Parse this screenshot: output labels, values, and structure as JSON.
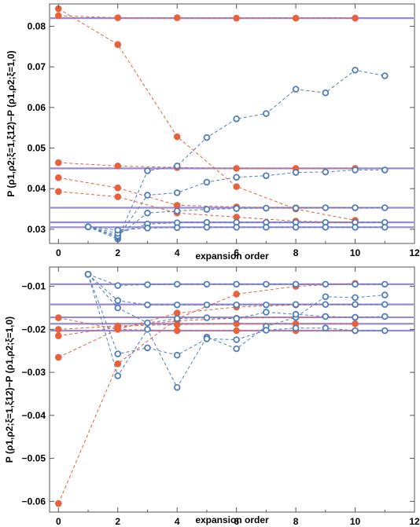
{
  "chart_data": [
    {
      "type": "line",
      "xlabel": "expansion order",
      "ylabel": "P (ρ1,ρ2;ξ=1,ξ12)−P (ρ1,ρ2;ξ=1,0)",
      "xlim": [
        -0.3,
        12
      ],
      "ylim": [
        0.0265,
        0.0855
      ],
      "xticks": [
        "0",
        "2",
        "4",
        "6",
        "8",
        "10",
        "12"
      ],
      "yticks": [
        "0.03",
        "0.04",
        "0.05",
        "0.06",
        "0.07",
        "0.08"
      ],
      "grid": false,
      "legend": "none",
      "reference_lines": [
        0.082,
        0.045,
        0.0353,
        0.0317,
        0.0305
      ],
      "series": [
        {
          "marker": "filled",
          "color": "#E8603C",
          "x": [
            0,
            2,
            4,
            6,
            8,
            10
          ],
          "y": [
            0.0843,
            0.0755,
            0.0528,
            0.0405,
            0.035,
            0.0322
          ]
        },
        {
          "marker": "filled",
          "color": "#E8603C",
          "x": [
            0,
            2,
            4,
            6,
            8,
            10
          ],
          "y": [
            0.0826,
            0.0821,
            0.0821,
            0.082,
            0.082,
            0.082
          ]
        },
        {
          "marker": "filled",
          "color": "#E8603C",
          "x": [
            0,
            2,
            4,
            6,
            8,
            10
          ],
          "y": [
            0.0464,
            0.0456,
            0.0452,
            0.045,
            0.045,
            0.045
          ]
        },
        {
          "marker": "filled",
          "color": "#E8603C",
          "x": [
            0,
            2,
            4,
            6,
            8,
            10
          ],
          "y": [
            0.0427,
            0.0402,
            0.0359,
            0.0355,
            0.0353,
            0.0353
          ]
        },
        {
          "marker": "filled",
          "color": "#E8603C",
          "x": [
            0,
            2,
            4,
            6,
            8,
            10
          ],
          "y": [
            0.0393,
            0.038,
            0.034,
            0.033,
            0.032,
            0.0317
          ]
        },
        {
          "marker": "open",
          "color": "#4F7DBC",
          "x": [
            1,
            2,
            3,
            4,
            5,
            6,
            7,
            8,
            9,
            10,
            11
          ],
          "y": [
            0.0306,
            0.0276,
            0.0444,
            0.0456,
            0.0526,
            0.0572,
            0.0585,
            0.0645,
            0.0636,
            0.0692,
            0.0678
          ]
        },
        {
          "marker": "open",
          "color": "#4F7DBC",
          "x": [
            1,
            2,
            3,
            4,
            5,
            6,
            7,
            8,
            9,
            10,
            11
          ],
          "y": [
            0.0306,
            0.028,
            0.0384,
            0.039,
            0.0416,
            0.0428,
            0.0432,
            0.044,
            0.0441,
            0.0446,
            0.0446
          ]
        },
        {
          "marker": "open",
          "color": "#4F7DBC",
          "x": [
            1,
            2,
            3,
            4,
            5,
            6,
            7,
            8,
            9,
            10,
            11
          ],
          "y": [
            0.0306,
            0.0284,
            0.034,
            0.0345,
            0.0349,
            0.0351,
            0.0352,
            0.0352,
            0.0353,
            0.0353,
            0.0353
          ]
        },
        {
          "marker": "open",
          "color": "#4F7DBC",
          "x": [
            1,
            2,
            3,
            4,
            5,
            6,
            7,
            8,
            9,
            10,
            11
          ],
          "y": [
            0.0306,
            0.029,
            0.0313,
            0.0316,
            0.0317,
            0.0317,
            0.0317,
            0.0317,
            0.0317,
            0.0317,
            0.0317
          ]
        },
        {
          "marker": "open",
          "color": "#4F7DBC",
          "x": [
            1,
            2,
            3,
            4,
            5,
            6,
            7,
            8,
            9,
            10,
            11
          ],
          "y": [
            0.0306,
            0.0298,
            0.0303,
            0.0304,
            0.0305,
            0.0305,
            0.0305,
            0.0305,
            0.0305,
            0.0305,
            0.0305
          ]
        }
      ]
    },
    {
      "type": "line",
      "xlabel": "expansion order",
      "ylabel": "P (ρ1,ρ2;ξ=1,ξ12)−P (ρ1,ρ2;ξ=1,0)",
      "xlim": [
        -0.3,
        12
      ],
      "ylim": [
        -0.0625,
        -0.0055
      ],
      "xticks": [
        "0",
        "2",
        "4",
        "6",
        "8",
        "10",
        "12"
      ],
      "yticks": [
        "-0.01",
        "-0.02",
        "-0.03",
        "-0.04",
        "-0.05",
        "-0.06"
      ],
      "grid": false,
      "legend": "none",
      "reference_lines": [
        -0.0095,
        -0.0142,
        -0.0172,
        -0.0187,
        -0.0203
      ],
      "series": [
        {
          "marker": "filled",
          "color": "#E8603C",
          "x": [
            0,
            2,
            4,
            6,
            8,
            10
          ],
          "y": [
            -0.0605,
            -0.028,
            -0.0175,
            -0.0118,
            -0.01,
            -0.0093
          ]
        },
        {
          "marker": "filled",
          "color": "#E8603C",
          "x": [
            0,
            2,
            4,
            6,
            8,
            10
          ],
          "y": [
            -0.0265,
            -0.02,
            -0.0162,
            -0.0148,
            -0.0143,
            -0.0142
          ]
        },
        {
          "marker": "filled",
          "color": "#E8603C",
          "x": [
            0,
            2,
            4,
            6,
            8,
            10
          ],
          "y": [
            -0.0215,
            -0.0195,
            -0.018,
            -0.0174,
            -0.0172,
            -0.0172
          ]
        },
        {
          "marker": "filled",
          "color": "#E8603C",
          "x": [
            0,
            2,
            4,
            6,
            8,
            10
          ],
          "y": [
            -0.02,
            -0.0192,
            -0.0189,
            -0.0187,
            -0.0187,
            -0.0187
          ]
        },
        {
          "marker": "filled",
          "color": "#E8603C",
          "x": [
            0,
            2,
            4,
            6,
            8,
            10
          ],
          "y": [
            -0.0173,
            -0.02,
            -0.0203,
            -0.0203,
            -0.0203,
            -0.0203
          ]
        },
        {
          "marker": "open",
          "color": "#4F7DBC",
          "x": [
            1,
            2,
            3,
            4,
            5,
            6,
            7,
            8,
            9,
            10,
            11
          ],
          "y": [
            -0.0072,
            -0.0308,
            -0.02,
            -0.0335,
            -0.0218,
            -0.0245,
            -0.0193,
            -0.0172,
            -0.0124,
            -0.0126,
            -0.012
          ]
        },
        {
          "marker": "open",
          "color": "#4F7DBC",
          "x": [
            1,
            2,
            3,
            4,
            5,
            6,
            7,
            8,
            9,
            10,
            11
          ],
          "y": [
            -0.0072,
            -0.0257,
            -0.0243,
            -0.026,
            -0.0222,
            -0.0224,
            -0.0202,
            -0.0197,
            -0.0197,
            -0.0203,
            -0.0203
          ]
        },
        {
          "marker": "open",
          "color": "#4F7DBC",
          "x": [
            1,
            2,
            3,
            4,
            5,
            6,
            7,
            8,
            9,
            10,
            11
          ],
          "y": [
            -0.0072,
            -0.015,
            -0.0185,
            -0.0175,
            -0.0173,
            -0.0175,
            -0.016,
            -0.0165,
            -0.017,
            -0.0172,
            -0.017
          ]
        },
        {
          "marker": "open",
          "color": "#4F7DBC",
          "x": [
            1,
            2,
            3,
            4,
            5,
            6,
            7,
            8,
            9,
            10,
            11
          ],
          "y": [
            -0.0072,
            -0.0133,
            -0.0143,
            -0.0143,
            -0.0143,
            -0.0143,
            -0.0143,
            -0.0142,
            -0.0142,
            -0.0142,
            -0.0142
          ]
        },
        {
          "marker": "open",
          "color": "#4F7DBC",
          "x": [
            1,
            2,
            3,
            4,
            5,
            6,
            7,
            8,
            9,
            10,
            11
          ],
          "y": [
            -0.0072,
            -0.0098,
            -0.0096,
            -0.0095,
            -0.0095,
            -0.0095,
            -0.0095,
            -0.0095,
            -0.0095,
            -0.0095,
            -0.0095
          ]
        }
      ]
    }
  ]
}
